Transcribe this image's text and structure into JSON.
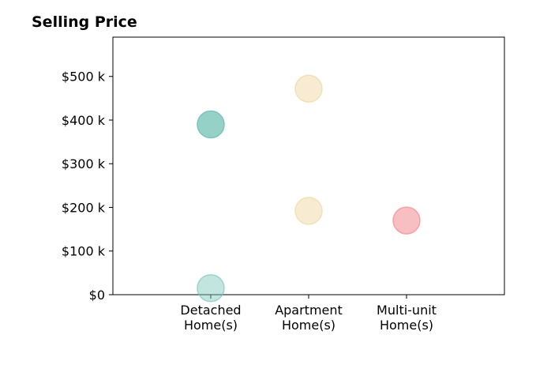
{
  "chart_data": {
    "type": "scatter",
    "title": "Selling Price",
    "xlabel": "",
    "ylabel": "",
    "categories": [
      "Detached\nHome(s)",
      "Apartment\nHome(s)",
      "Multi-unit\nHome(s)"
    ],
    "x_range": [
      0,
      4
    ],
    "ylim": [
      0,
      590000
    ],
    "y_ticks": [
      0,
      100000,
      200000,
      300000,
      400000,
      500000
    ],
    "y_tick_labels": [
      "$0",
      "$100 k",
      "$200 k",
      "$300 k",
      "$400 k",
      "$500 k"
    ],
    "grid": false,
    "legend": "none",
    "points": [
      {
        "category": 1,
        "value": 390000,
        "color": "#7ac5b9",
        "opacity": 0.8
      },
      {
        "category": 1,
        "value": 15000,
        "color": "#7ac5b9",
        "opacity": 0.45
      },
      {
        "category": 2,
        "value": 472000,
        "color": "#f0d9a4",
        "opacity": 0.5
      },
      {
        "category": 2,
        "value": 192000,
        "color": "#f0d9a4",
        "opacity": 0.5
      },
      {
        "category": 3,
        "value": 170000,
        "color": "#f2949a",
        "opacity": 0.6
      }
    ]
  }
}
